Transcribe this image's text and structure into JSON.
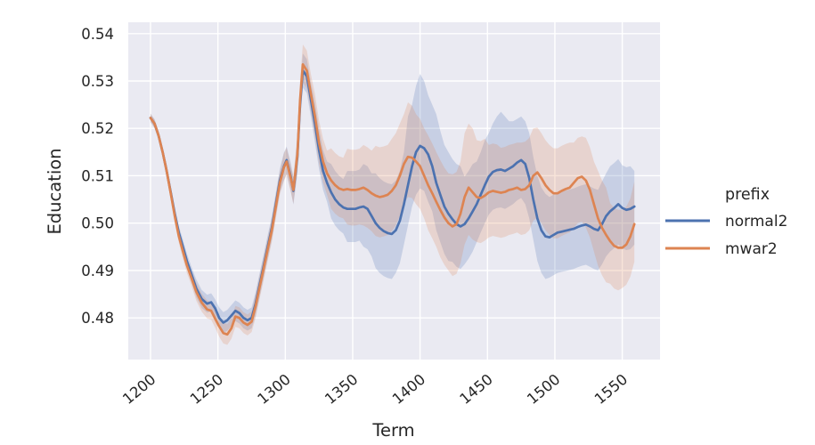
{
  "chart_data": {
    "type": "line",
    "title": "",
    "xlabel": "Term",
    "ylabel": "Education",
    "x_ticks": [
      1200,
      1250,
      1300,
      1350,
      1400,
      1450,
      1500,
      1550
    ],
    "y_ticks": [
      0.48,
      0.49,
      0.5,
      0.51,
      0.52,
      0.53,
      0.54
    ],
    "y_tick_labels": [
      "0.48",
      "0.49",
      "0.50",
      "0.51",
      "0.52",
      "0.53",
      "0.54"
    ],
    "xlim": [
      1183.5,
      1578
    ],
    "ylim": [
      0.4712,
      0.5424
    ],
    "grid": true,
    "plot_bg": "#EAEAF2",
    "grid_color": "#FFFFFF",
    "text_color": "#262626",
    "band_opacity": 0.22,
    "legend": {
      "title": "prefix",
      "position": "right-outside",
      "entries": [
        "normal2",
        "mwar2"
      ]
    },
    "x": [
      1200,
      1203,
      1206,
      1209,
      1212,
      1215,
      1218,
      1221,
      1224,
      1227,
      1230,
      1234,
      1238,
      1242,
      1245,
      1248,
      1251,
      1254,
      1257,
      1260,
      1263,
      1266,
      1269,
      1272,
      1275,
      1278,
      1281,
      1284,
      1287,
      1290,
      1293,
      1296,
      1299,
      1301,
      1304,
      1306,
      1309,
      1311,
      1313,
      1316,
      1319,
      1322,
      1325,
      1328,
      1331,
      1334,
      1337,
      1340,
      1343,
      1346,
      1349,
      1352,
      1355,
      1358,
      1361,
      1364,
      1367,
      1370,
      1373,
      1376,
      1379,
      1382,
      1385,
      1388,
      1391,
      1394,
      1397,
      1400,
      1403,
      1406,
      1409,
      1412,
      1415,
      1418,
      1421,
      1424,
      1427,
      1430,
      1433,
      1436,
      1439,
      1442,
      1445,
      1448,
      1451,
      1454,
      1457,
      1460,
      1463,
      1466,
      1469,
      1472,
      1475,
      1478,
      1481,
      1484,
      1487,
      1490,
      1493,
      1496,
      1499,
      1502,
      1505,
      1508,
      1511,
      1514,
      1517,
      1520,
      1523,
      1526,
      1529,
      1532,
      1535,
      1538,
      1541,
      1544,
      1547,
      1550,
      1553,
      1556,
      1559
    ],
    "series": [
      {
        "name": "normal2",
        "color": "#4C72B0",
        "y": [
          0.5222,
          0.521,
          0.5185,
          0.515,
          0.511,
          0.5065,
          0.502,
          0.498,
          0.495,
          0.492,
          0.4895,
          0.4862,
          0.484,
          0.483,
          0.4833,
          0.482,
          0.48,
          0.479,
          0.4795,
          0.4805,
          0.4815,
          0.481,
          0.48,
          0.4795,
          0.48,
          0.483,
          0.487,
          0.491,
          0.495,
          0.499,
          0.504,
          0.509,
          0.512,
          0.5133,
          0.5098,
          0.5068,
          0.514,
          0.525,
          0.5322,
          0.531,
          0.526,
          0.521,
          0.5155,
          0.511,
          0.5085,
          0.5065,
          0.505,
          0.504,
          0.5033,
          0.503,
          0.503,
          0.503,
          0.5033,
          0.5035,
          0.503,
          0.5015,
          0.5,
          0.499,
          0.4983,
          0.4979,
          0.4977,
          0.4985,
          0.5005,
          0.504,
          0.508,
          0.512,
          0.515,
          0.5163,
          0.5158,
          0.5145,
          0.512,
          0.5085,
          0.506,
          0.5035,
          0.502,
          0.5008,
          0.4998,
          0.4993,
          0.4998,
          0.501,
          0.5025,
          0.504,
          0.506,
          0.508,
          0.5098,
          0.5108,
          0.5112,
          0.5113,
          0.511,
          0.5115,
          0.512,
          0.5128,
          0.5133,
          0.5125,
          0.5095,
          0.505,
          0.501,
          0.4985,
          0.4972,
          0.497,
          0.4975,
          0.498,
          0.4982,
          0.4984,
          0.4986,
          0.4988,
          0.4992,
          0.4995,
          0.4997,
          0.4993,
          0.4988,
          0.4985,
          0.4998,
          0.5015,
          0.5025,
          0.5032,
          0.504,
          0.5032,
          0.5028,
          0.503,
          0.5035
        ],
        "band_lo": [
          0.5213,
          0.5201,
          0.5176,
          0.5141,
          0.5096,
          0.5051,
          0.5006,
          0.4966,
          0.4934,
          0.4904,
          0.4879,
          0.4843,
          0.4821,
          0.4811,
          0.4814,
          0.4801,
          0.4778,
          0.4768,
          0.4773,
          0.4783,
          0.4793,
          0.4788,
          0.4778,
          0.4773,
          0.4778,
          0.4805,
          0.4845,
          0.4885,
          0.4925,
          0.4965,
          0.5015,
          0.5065,
          0.5091,
          0.5104,
          0.5069,
          0.5039,
          0.5104,
          0.5214,
          0.5286,
          0.5274,
          0.5224,
          0.517,
          0.5115,
          0.507,
          0.5045,
          0.501,
          0.4995,
          0.4985,
          0.4978,
          0.496,
          0.496,
          0.496,
          0.4963,
          0.495,
          0.4945,
          0.493,
          0.4905,
          0.4895,
          0.4888,
          0.4884,
          0.4882,
          0.4895,
          0.4915,
          0.4955,
          0.4995,
          0.5035,
          0.506,
          0.5073,
          0.5068,
          0.5045,
          0.5025,
          0.4985,
          0.496,
          0.4935,
          0.492,
          0.4918,
          0.4908,
          0.4903,
          0.4913,
          0.4925,
          0.494,
          0.496,
          0.498,
          0.5,
          0.5018,
          0.5028,
          0.5032,
          0.5033,
          0.503,
          0.5035,
          0.504,
          0.5048,
          0.5053,
          0.504,
          0.501,
          0.4965,
          0.492,
          0.4895,
          0.4882,
          0.4885,
          0.489,
          0.4895,
          0.4897,
          0.4899,
          0.4901,
          0.4903,
          0.4907,
          0.491,
          0.4912,
          0.4908,
          0.4903,
          0.49,
          0.4913,
          0.493,
          0.494,
          0.4947,
          0.4955,
          0.4947,
          0.4943,
          0.4945,
          0.4955
        ],
        "band_hi": [
          0.5231,
          0.5219,
          0.5194,
          0.5159,
          0.5124,
          0.5079,
          0.5034,
          0.4994,
          0.4966,
          0.4936,
          0.4911,
          0.4881,
          0.4859,
          0.4849,
          0.4852,
          0.4839,
          0.4822,
          0.4812,
          0.4817,
          0.4827,
          0.4837,
          0.4832,
          0.4822,
          0.4817,
          0.4822,
          0.4855,
          0.4895,
          0.4935,
          0.4975,
          0.5015,
          0.5065,
          0.5115,
          0.5149,
          0.5162,
          0.5127,
          0.5097,
          0.5176,
          0.5286,
          0.5358,
          0.5346,
          0.5296,
          0.5255,
          0.52,
          0.5155,
          0.513,
          0.5125,
          0.511,
          0.51,
          0.5093,
          0.511,
          0.511,
          0.511,
          0.5113,
          0.5125,
          0.512,
          0.5105,
          0.5105,
          0.5095,
          0.5088,
          0.5084,
          0.5082,
          0.509,
          0.511,
          0.515,
          0.5225,
          0.525,
          0.529,
          0.5315,
          0.53,
          0.527,
          0.525,
          0.523,
          0.5195,
          0.5165,
          0.515,
          0.5135,
          0.5125,
          0.512,
          0.5098,
          0.511,
          0.5125,
          0.513,
          0.515,
          0.5175,
          0.519,
          0.521,
          0.5225,
          0.5235,
          0.5225,
          0.5215,
          0.5215,
          0.522,
          0.5225,
          0.5215,
          0.519,
          0.514,
          0.51,
          0.5075,
          0.5062,
          0.5055,
          0.506,
          0.5065,
          0.5067,
          0.5069,
          0.5071,
          0.5073,
          0.5077,
          0.508,
          0.5082,
          0.5078,
          0.5073,
          0.507,
          0.5088,
          0.5105,
          0.512,
          0.5127,
          0.5135,
          0.5122,
          0.5118,
          0.512,
          0.511
        ]
      },
      {
        "name": "mwar2",
        "color": "#DD8452",
        "y": [
          0.5222,
          0.521,
          0.5185,
          0.515,
          0.511,
          0.5063,
          0.5015,
          0.4973,
          0.4941,
          0.4911,
          0.4887,
          0.4855,
          0.4832,
          0.4818,
          0.4815,
          0.4798,
          0.4782,
          0.4768,
          0.4765,
          0.4778,
          0.4803,
          0.48,
          0.479,
          0.4785,
          0.4792,
          0.4825,
          0.4865,
          0.4905,
          0.4945,
          0.4985,
          0.5035,
          0.5085,
          0.5118,
          0.513,
          0.5095,
          0.507,
          0.5145,
          0.526,
          0.5335,
          0.5322,
          0.5272,
          0.5225,
          0.517,
          0.513,
          0.5105,
          0.509,
          0.508,
          0.5073,
          0.507,
          0.5072,
          0.507,
          0.507,
          0.5072,
          0.5075,
          0.507,
          0.5063,
          0.5058,
          0.5055,
          0.5057,
          0.506,
          0.5068,
          0.508,
          0.51,
          0.5125,
          0.514,
          0.5138,
          0.513,
          0.512,
          0.51,
          0.508,
          0.5063,
          0.5045,
          0.5028,
          0.5012,
          0.5,
          0.4993,
          0.4998,
          0.502,
          0.5055,
          0.5075,
          0.5065,
          0.5055,
          0.5053,
          0.5058,
          0.5065,
          0.5068,
          0.5066,
          0.5064,
          0.5066,
          0.507,
          0.5072,
          0.5075,
          0.507,
          0.5072,
          0.508,
          0.51,
          0.5107,
          0.5095,
          0.508,
          0.507,
          0.5063,
          0.5063,
          0.5068,
          0.5072,
          0.5075,
          0.5085,
          0.5095,
          0.5098,
          0.509,
          0.507,
          0.504,
          0.501,
          0.499,
          0.4975,
          0.4962,
          0.4952,
          0.4948,
          0.4948,
          0.4955,
          0.4972,
          0.4998
        ],
        "band_lo": [
          0.5213,
          0.5201,
          0.5176,
          0.5141,
          0.5096,
          0.5049,
          0.5001,
          0.4959,
          0.4925,
          0.4895,
          0.4871,
          0.4836,
          0.4813,
          0.4799,
          0.4796,
          0.4779,
          0.476,
          0.4746,
          0.4743,
          0.4756,
          0.4781,
          0.4778,
          0.4768,
          0.4763,
          0.477,
          0.48,
          0.484,
          0.488,
          0.492,
          0.496,
          0.501,
          0.506,
          0.5089,
          0.5101,
          0.5066,
          0.5041,
          0.5107,
          0.5222,
          0.5297,
          0.5284,
          0.5234,
          0.518,
          0.5125,
          0.5085,
          0.506,
          0.503,
          0.502,
          0.5013,
          0.501,
          0.4997,
          0.4995,
          0.4995,
          0.4997,
          0.4995,
          0.499,
          0.4983,
          0.4973,
          0.497,
          0.4972,
          0.4975,
          0.4983,
          0.4995,
          0.5015,
          0.504,
          0.5055,
          0.5053,
          0.504,
          0.503,
          0.501,
          0.4985,
          0.4968,
          0.495,
          0.4928,
          0.4912,
          0.49,
          0.4888,
          0.4893,
          0.4915,
          0.4955,
          0.4975,
          0.4965,
          0.496,
          0.4958,
          0.4963,
          0.497,
          0.4973,
          0.4971,
          0.4969,
          0.4971,
          0.4975,
          0.4977,
          0.498,
          0.4975,
          0.4977,
          0.4985,
          0.5005,
          0.5012,
          0.5,
          0.4985,
          0.4975,
          0.4968,
          0.4968,
          0.4973,
          0.4977,
          0.498,
          0.499,
          0.5,
          0.5003,
          0.499,
          0.497,
          0.494,
          0.491,
          0.489,
          0.4875,
          0.4872,
          0.4862,
          0.4858,
          0.4863,
          0.487,
          0.4887,
          0.4918
        ],
        "band_hi": [
          0.5231,
          0.5219,
          0.5194,
          0.5159,
          0.5124,
          0.5077,
          0.5029,
          0.4987,
          0.4957,
          0.4927,
          0.4903,
          0.4874,
          0.4851,
          0.4837,
          0.4834,
          0.4817,
          0.4804,
          0.479,
          0.4787,
          0.48,
          0.4825,
          0.4822,
          0.4812,
          0.4807,
          0.4814,
          0.485,
          0.489,
          0.493,
          0.497,
          0.501,
          0.506,
          0.511,
          0.5147,
          0.5159,
          0.5124,
          0.5099,
          0.5187,
          0.5302,
          0.5377,
          0.5364,
          0.5314,
          0.5273,
          0.5218,
          0.5178,
          0.5153,
          0.5158,
          0.5148,
          0.5141,
          0.5138,
          0.5157,
          0.5155,
          0.5155,
          0.5157,
          0.5165,
          0.516,
          0.5153,
          0.5163,
          0.516,
          0.5162,
          0.5165,
          0.5178,
          0.519,
          0.521,
          0.523,
          0.5255,
          0.5248,
          0.523,
          0.522,
          0.52,
          0.5185,
          0.5168,
          0.515,
          0.5133,
          0.5117,
          0.5105,
          0.5103,
          0.5108,
          0.513,
          0.519,
          0.521,
          0.52,
          0.5175,
          0.5173,
          0.5178,
          0.5165,
          0.5168,
          0.5166,
          0.5159,
          0.5161,
          0.5165,
          0.5167,
          0.517,
          0.517,
          0.5172,
          0.518,
          0.52,
          0.5202,
          0.519,
          0.5175,
          0.5165,
          0.5158,
          0.5158,
          0.5163,
          0.5167,
          0.517,
          0.517,
          0.518,
          0.5183,
          0.518,
          0.516,
          0.513,
          0.511,
          0.509,
          0.5075,
          0.5042,
          0.5032,
          0.5028,
          0.5028,
          0.5035,
          0.5052,
          0.5088
        ]
      }
    ]
  }
}
